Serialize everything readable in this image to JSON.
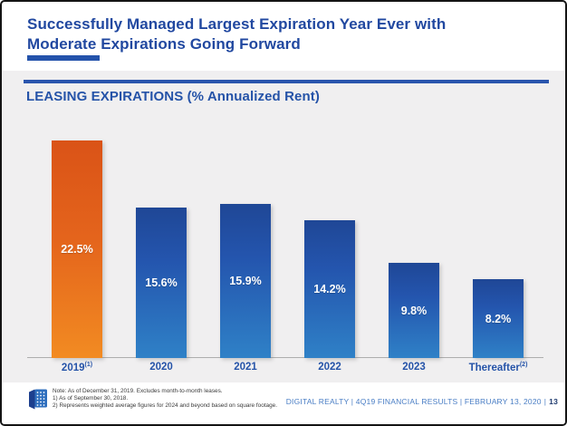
{
  "slide": {
    "title_line1": "Successfully Managed Largest Expiration Year Ever with",
    "title_line2": "Moderate Expirations Going Forward",
    "section_title": "LEASING EXPIRATIONS (% Annualized Rent)"
  },
  "chart_data": {
    "type": "bar",
    "title": "LEASING EXPIRATIONS (% Annualized Rent)",
    "categories": [
      "2019",
      "2020",
      "2021",
      "2022",
      "2023",
      "Thereafter"
    ],
    "category_superscripts": [
      "(1)",
      "",
      "",
      "",
      "",
      "(2)"
    ],
    "values": [
      22.5,
      15.6,
      15.9,
      14.2,
      9.8,
      8.2
    ],
    "value_labels": [
      "22.5%",
      "15.6%",
      "15.9%",
      "14.2%",
      "9.8%",
      "8.2%"
    ],
    "unit": "%",
    "ylim": [
      0,
      24
    ],
    "grid": false,
    "legend": "none",
    "highlight_index": 0,
    "highlight_color_top": "#da5317",
    "highlight_color_bottom": "#f28b22",
    "bar_color_top": "#1f4796",
    "bar_color_bottom": "#2f81c7",
    "value_label_position": "inside-center",
    "value_label_color": "#ffffff"
  },
  "footer": {
    "note_lines": [
      "Note: As of December 31, 2019. Excludes month-to-month leases.",
      "1) As of September 30, 2018.",
      "2) Represents weighted average figures for 2024 and beyond based on square footage."
    ],
    "branding": "DIGITAL REALTY | 4Q19 FINANCIAL RESULTS | FEBRUARY 13, 2020",
    "separator": "|",
    "page_number": "13",
    "logo": "digital-realty-cube-logo"
  },
  "colors": {
    "title_blue": "#2148a0",
    "accent_bar_blue": "#2453ab",
    "rule_blue": "#2a55ad",
    "band_gray": "#f0eff0",
    "axis_gray": "#aeaeae",
    "x_label_blue": "#2553a8",
    "branding_blue": "#4a7ec5",
    "page_number_blue": "#1e3a6e",
    "note_gray": "#3a3a3a"
  }
}
